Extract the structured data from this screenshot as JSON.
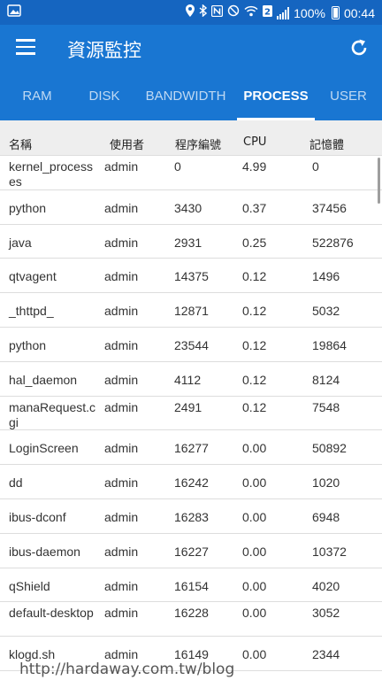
{
  "status_bar": {
    "battery": "100%",
    "time": "00:44",
    "icons": [
      "image-icon",
      "location-icon",
      "bluetooth-icon",
      "nfc-icon",
      "mute-icon",
      "wifi-icon",
      "sim-2-icon",
      "signal-icon",
      "battery-icon"
    ]
  },
  "app_bar": {
    "title": "資源監控",
    "menu_icon": "menu-icon",
    "refresh_icon": "refresh-icon"
  },
  "tabs": [
    {
      "label": "RAM",
      "active": false
    },
    {
      "label": "DISK",
      "active": false
    },
    {
      "label": "BANDWIDTH",
      "active": false
    },
    {
      "label": "PROCESS",
      "active": true
    },
    {
      "label": "USER",
      "active": false
    }
  ],
  "table": {
    "headers": [
      "名稱",
      "使用者",
      "程序編號",
      "CPU",
      "記憶體"
    ],
    "rows": [
      [
        "kernel_processes",
        "admin",
        "0",
        "4.99",
        "0"
      ],
      [
        "python",
        "admin",
        "3430",
        "0.37",
        "37456"
      ],
      [
        "java",
        "admin",
        "2931",
        "0.25",
        "522876"
      ],
      [
        "qtvagent",
        "admin",
        "14375",
        "0.12",
        "1496"
      ],
      [
        "_thttpd_",
        "admin",
        "12871",
        "0.12",
        "5032"
      ],
      [
        "python",
        "admin",
        "23544",
        "0.12",
        "19864"
      ],
      [
        "hal_daemon",
        "admin",
        "4112",
        "0.12",
        "8124"
      ],
      [
        "manaRequest.cgi",
        "admin",
        "2491",
        "0.12",
        "7548"
      ],
      [
        "LoginScreen",
        "admin",
        "16277",
        "0.00",
        "50892"
      ],
      [
        "dd",
        "admin",
        "16242",
        "0.00",
        "1020"
      ],
      [
        "ibus-dconf",
        "admin",
        "16283",
        "0.00",
        "6948"
      ],
      [
        "ibus-daemon",
        "admin",
        "16227",
        "0.00",
        "10372"
      ],
      [
        "qShield",
        "admin",
        "16154",
        "0.00",
        "4020"
      ],
      [
        "default-desktop",
        "admin",
        "16228",
        "0.00",
        "3052"
      ],
      [
        "klogd.sh",
        "admin",
        "16149",
        "0.00",
        "2344"
      ]
    ]
  },
  "watermark": "http://hardaway.com.tw/blog",
  "colors": {
    "app_bar": "#1976d2",
    "status_bar": "#1565c0",
    "header_bg": "#eeeeee",
    "divider": "#dddddd"
  }
}
